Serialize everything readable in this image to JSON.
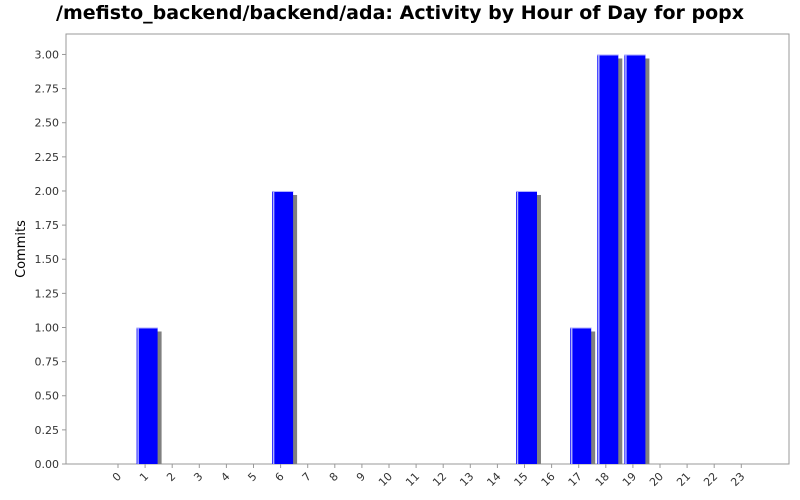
{
  "chart_data": {
    "type": "bar",
    "title": "/mefisto_backend/backend/ada: Activity by Hour of Day for popx",
    "xlabel": "",
    "ylabel": "Commits",
    "categories": [
      "0",
      "1",
      "2",
      "3",
      "4",
      "5",
      "6",
      "7",
      "8",
      "9",
      "10",
      "11",
      "12",
      "13",
      "14",
      "15",
      "16",
      "17",
      "18",
      "19",
      "20",
      "21",
      "22",
      "23"
    ],
    "values": [
      0,
      1,
      0,
      0,
      0,
      0,
      2,
      0,
      0,
      0,
      0,
      0,
      0,
      0,
      0,
      2,
      0,
      1,
      3,
      3,
      0,
      0,
      0,
      0
    ],
    "ylim": [
      0,
      3.15
    ],
    "yticks": [
      "0.00",
      "0.25",
      "0.50",
      "0.75",
      "1.00",
      "1.25",
      "1.50",
      "1.75",
      "2.00",
      "2.25",
      "2.50",
      "2.75",
      "3.00"
    ],
    "bar_color": "#0000ff",
    "shadow_color": "#808080",
    "grid": false,
    "legend": "none"
  }
}
